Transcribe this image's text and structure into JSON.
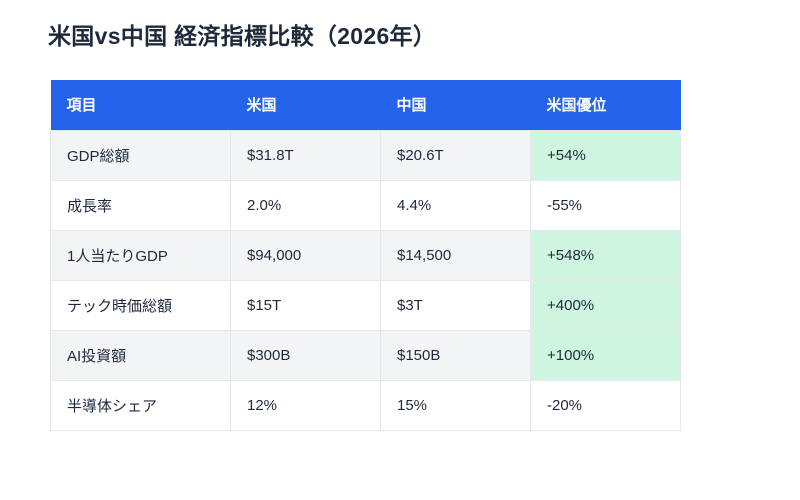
{
  "page": {
    "title": "米国vs中国 経済指標比較（2026年）"
  },
  "chart_data": {
    "type": "table",
    "title": "米国vs中国 経済指標比較（2026年）",
    "columns": [
      "項目",
      "米国",
      "中国",
      "米国優位"
    ],
    "rows": [
      {
        "cells": [
          "GDP総額",
          "$31.8T",
          "$20.6T",
          "+54%"
        ],
        "advantage_highlighted": true
      },
      {
        "cells": [
          "成長率",
          "2.0%",
          "4.4%",
          "-55%"
        ],
        "advantage_highlighted": false
      },
      {
        "cells": [
          "1人当たりGDP",
          "$94,000",
          "$14,500",
          "+548%"
        ],
        "advantage_highlighted": true
      },
      {
        "cells": [
          "テック時価総額",
          "$15T",
          "$3T",
          "+400%"
        ],
        "advantage_highlighted": true
      },
      {
        "cells": [
          "AI投資額",
          "$300B",
          "$150B",
          "+100%"
        ],
        "advantage_highlighted": true
      },
      {
        "cells": [
          "半導体シェア",
          "12%",
          "15%",
          "-20%"
        ],
        "advantage_highlighted": false
      }
    ],
    "layout": {
      "legend": "none",
      "grid": "on",
      "zebra_striping": true,
      "highlight_meaning": "positive US advantage cells shaded green"
    }
  },
  "colors": {
    "header_bg": "#2563eb",
    "header_text": "#ffffff",
    "highlight_bg": "#cdf5e0",
    "stripe_bg": "#f2f4f6",
    "border": "#e5e7eb",
    "text": "#1e293b",
    "page_bg": "#ffffff"
  }
}
